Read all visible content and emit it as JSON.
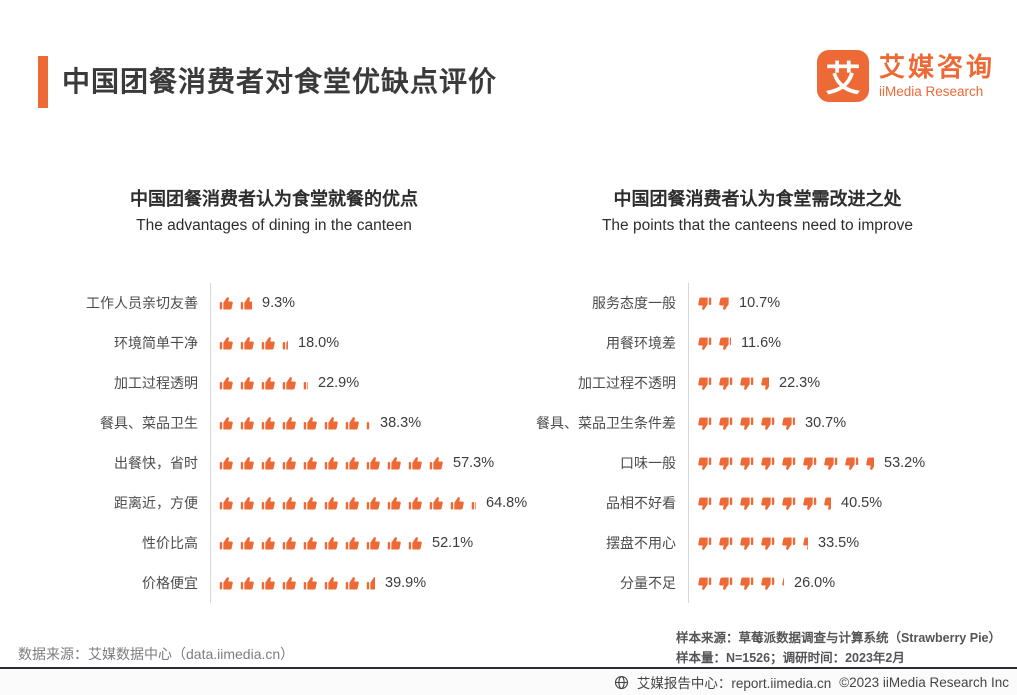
{
  "page": {
    "accent_color": "#ED6A36",
    "background": "#ffffff"
  },
  "header": {
    "title": "中国团餐消费者对食堂优缺点评价"
  },
  "logo": {
    "mark_char": "艾",
    "name_cn": "艾媒咨询",
    "name_en": "iiMedia Research"
  },
  "chart_data": [
    {
      "type": "bar",
      "title": "中国团餐消费者认为食堂就餐的优点",
      "subtitle": "The advantages of dining in the canteen",
      "icon": "thumb-up",
      "unit": "%",
      "percent_per_icon": 5.25,
      "legend_position": "none",
      "grid": false,
      "categories": [
        "工作人员亲切友善",
        "环境简单干净",
        "加工过程透明",
        "餐具、菜品卫生",
        "出餐快，省时",
        "距离近，方便",
        "性价比高",
        "价格便宜"
      ],
      "values": [
        9.3,
        18.0,
        22.9,
        38.3,
        57.3,
        64.8,
        52.1,
        39.9
      ],
      "value_labels": [
        "9.3%",
        "18.0%",
        "22.9%",
        "38.3%",
        "57.3%",
        "64.8%",
        "52.1%",
        "39.9%"
      ]
    },
    {
      "type": "bar",
      "title": "中国团餐消费者认为食堂需改进之处",
      "subtitle": "The points that the canteens need to improve",
      "icon": "thumb-down",
      "unit": "%",
      "percent_per_icon": 6.2,
      "legend_position": "none",
      "grid": false,
      "categories": [
        "服务态度一般",
        "用餐环境差",
        "加工过程不透明",
        "餐具、菜品卫生条件差",
        "口味一般",
        "品相不好看",
        "摆盘不用心",
        "分量不足"
      ],
      "values": [
        10.7,
        11.6,
        22.3,
        30.7,
        53.2,
        40.5,
        33.5,
        26.0
      ],
      "value_labels": [
        "10.7%",
        "11.6%",
        "22.3%",
        "30.7%",
        "53.2%",
        "40.5%",
        "33.5%",
        "26.0%"
      ]
    }
  ],
  "footer": {
    "source_left": "数据来源：艾媒数据中心（data.iimedia.cn）",
    "sample_source": "样本来源：草莓派数据调查与计算系统（Strawberry Pie）",
    "sample_size": "样本量：N=1526；调研时间：2023年2月",
    "report_center": "艾媒报告中心：report.iimedia.cn",
    "copyright": "©2023  iiMedia Research Inc"
  }
}
